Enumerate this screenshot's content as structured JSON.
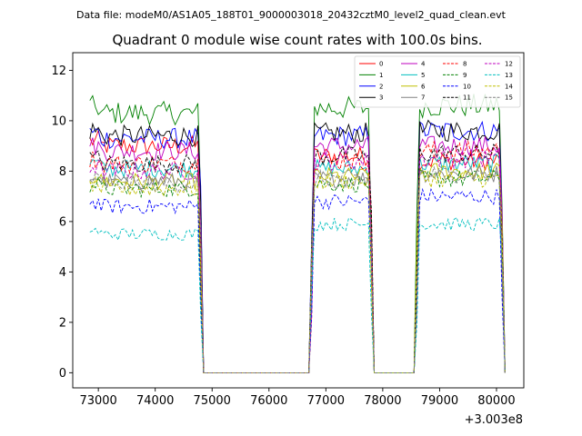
{
  "chart_data": {
    "type": "line",
    "suptitle": "Data file: modeM0/AS1A05_188T01_9000003018_20432cztM0_level2_quad_clean.evt",
    "title": "Quadrant 0 module wise count rates with 100.0s bins.",
    "xlabel": "",
    "ylabel": "",
    "x_offset_label": "+3.003e8",
    "xlim": [
      72550,
      80480
    ],
    "ylim": [
      -0.6,
      12.7
    ],
    "x_ticks": [
      73000,
      74000,
      75000,
      76000,
      77000,
      78000,
      79000,
      80000
    ],
    "x_tick_labels": [
      "73000",
      "74000",
      "75000",
      "76000",
      "77000",
      "78000",
      "79000",
      "80000"
    ],
    "y_ticks": [
      0,
      2,
      4,
      6,
      8,
      10,
      12
    ],
    "y_tick_labels": [
      "0",
      "2",
      "4",
      "6",
      "8",
      "10",
      "12"
    ],
    "legend_position": "top-right",
    "legend_columns": 4,
    "segments": [
      {
        "start": 72850,
        "end": 74750
      },
      {
        "start": 76800,
        "end": 77750
      },
      {
        "start": 78650,
        "end": 80050
      }
    ],
    "series": [
      {
        "name": "0",
        "color": "#ff0000",
        "dashed": false,
        "levels": [
          9.0,
          8.6,
          8.4
        ]
      },
      {
        "name": "1",
        "color": "#008000",
        "dashed": false,
        "levels": [
          10.3,
          10.5,
          10.6
        ]
      },
      {
        "name": "2",
        "color": "#0000ff",
        "dashed": false,
        "levels": [
          9.3,
          9.4,
          9.6
        ]
      },
      {
        "name": "3",
        "color": "#000000",
        "dashed": false,
        "levels": [
          9.4,
          9.5,
          9.6
        ]
      },
      {
        "name": "4",
        "color": "#bf00bf",
        "dashed": false,
        "levels": [
          8.8,
          9.0,
          9.0
        ]
      },
      {
        "name": "5",
        "color": "#00bfbf",
        "dashed": false,
        "levels": [
          8.1,
          8.1,
          8.3
        ]
      },
      {
        "name": "6",
        "color": "#bfbf00",
        "dashed": false,
        "levels": [
          7.6,
          7.8,
          8.0
        ]
      },
      {
        "name": "7",
        "color": "#808080",
        "dashed": false,
        "levels": [
          7.6,
          7.7,
          7.9
        ]
      },
      {
        "name": "8",
        "color": "#ff0000",
        "dashed": true,
        "levels": [
          8.3,
          8.4,
          8.8
        ]
      },
      {
        "name": "9",
        "color": "#008000",
        "dashed": true,
        "levels": [
          7.3,
          7.5,
          7.7
        ]
      },
      {
        "name": "10",
        "color": "#0000ff",
        "dashed": true,
        "levels": [
          6.6,
          6.8,
          7.0
        ]
      },
      {
        "name": "11",
        "color": "#000000",
        "dashed": true,
        "levels": [
          8.3,
          8.6,
          8.7
        ]
      },
      {
        "name": "12",
        "color": "#bf00bf",
        "dashed": true,
        "levels": [
          8.0,
          8.4,
          8.5
        ]
      },
      {
        "name": "13",
        "color": "#00bfbf",
        "dashed": true,
        "levels": [
          5.5,
          5.9,
          5.9
        ]
      },
      {
        "name": "14",
        "color": "#bfbf00",
        "dashed": true,
        "levels": [
          7.3,
          7.6,
          7.7
        ]
      },
      {
        "name": "15",
        "color": "#808080",
        "dashed": true,
        "levels": [
          7.5,
          7.7,
          7.9
        ]
      }
    ]
  }
}
